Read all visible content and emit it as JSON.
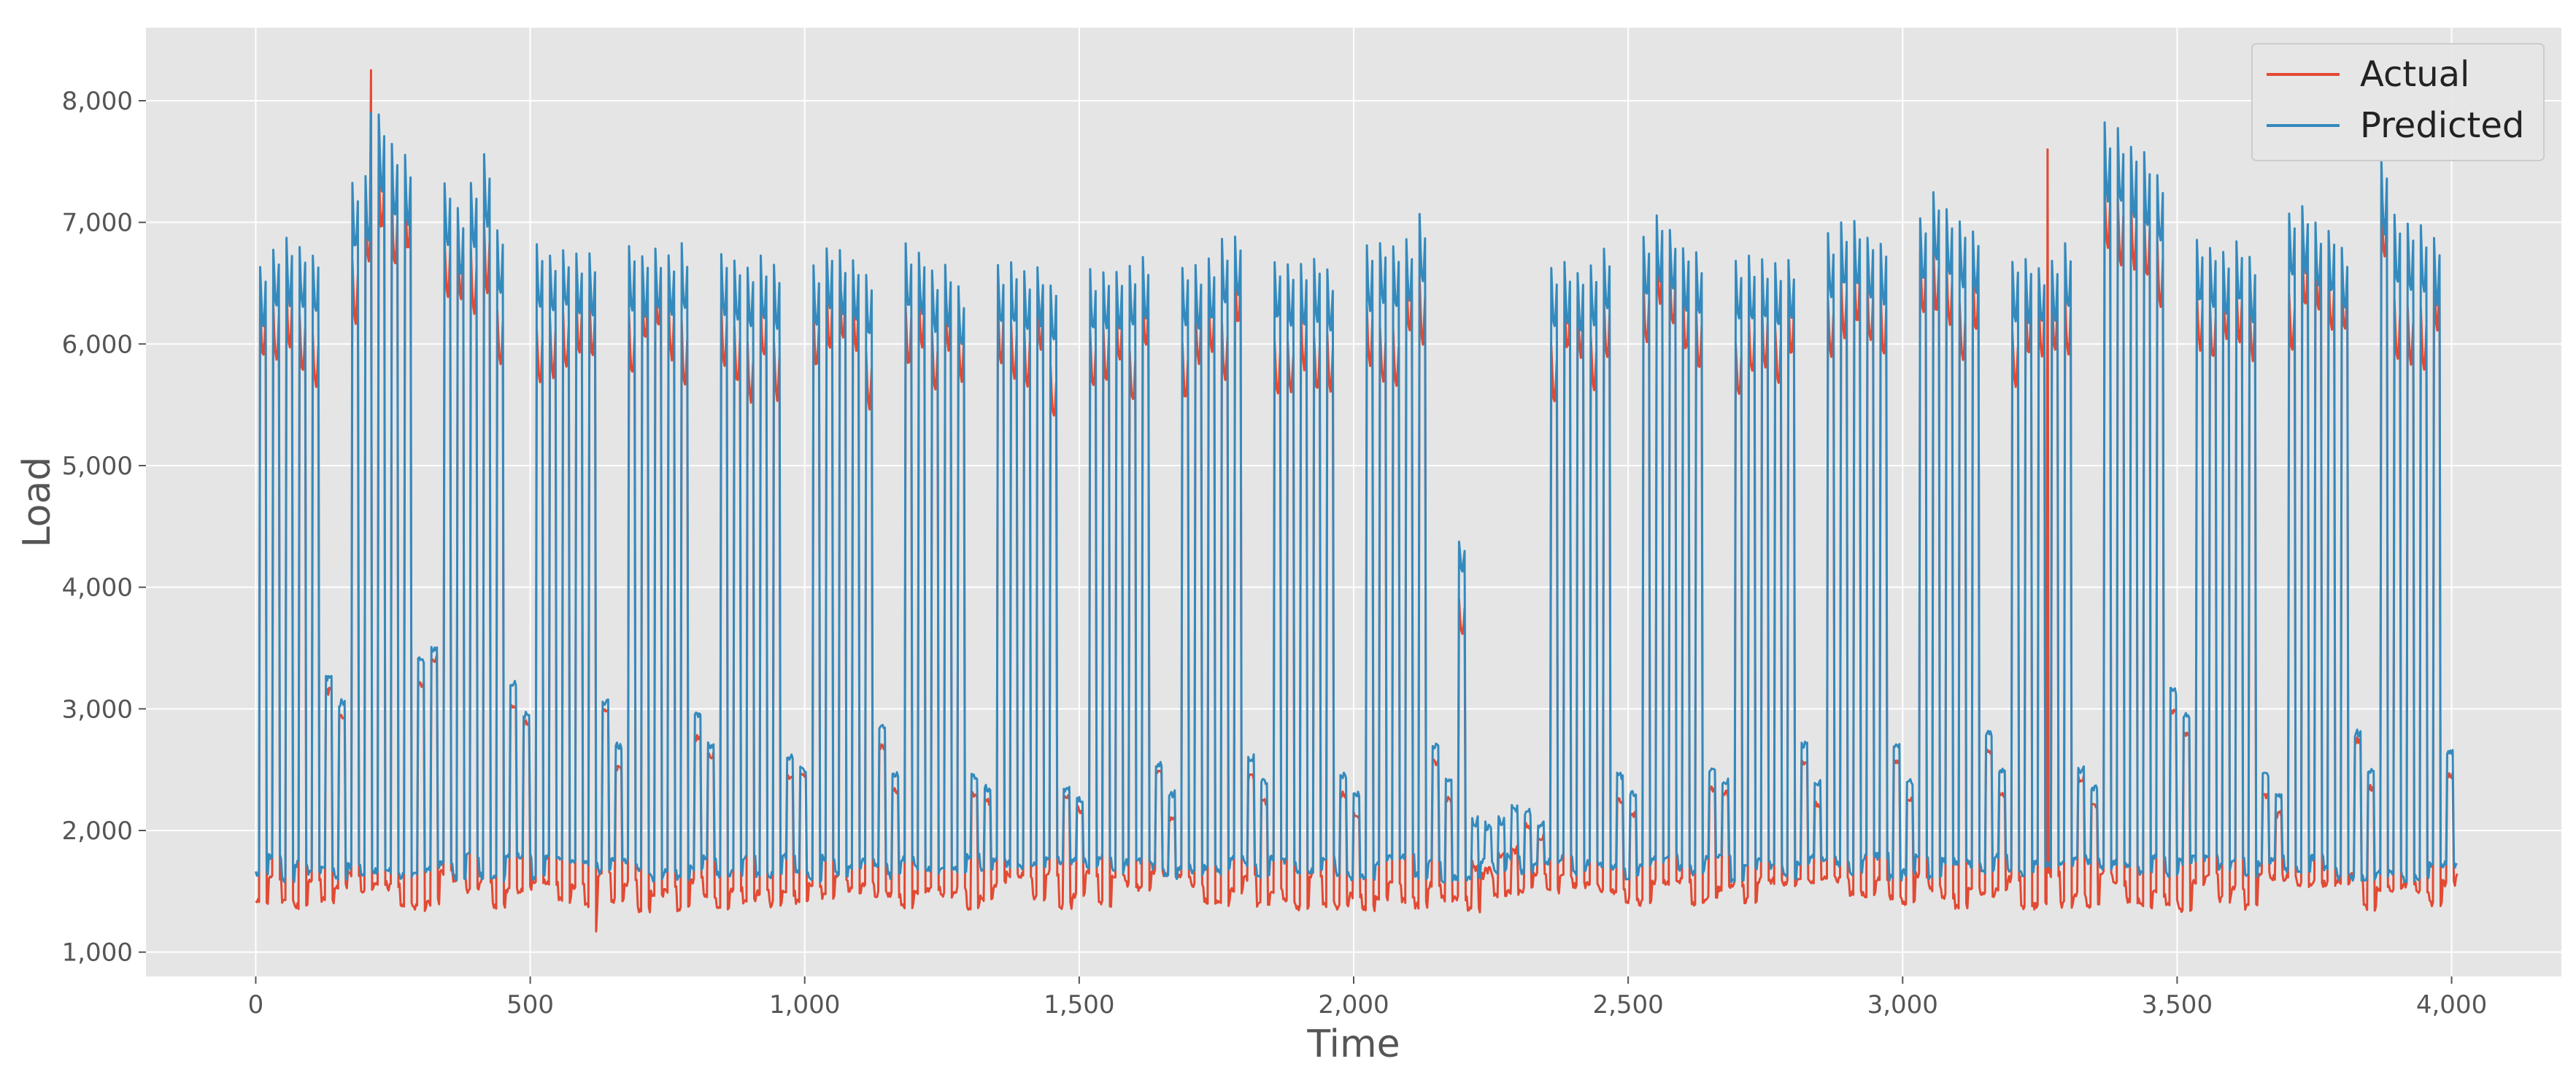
{
  "chart_data": {
    "type": "line",
    "title": "",
    "xlabel": "Time",
    "ylabel": "Load",
    "xlim": [
      -200,
      4200
    ],
    "ylim": [
      800,
      8600
    ],
    "x_ticks": [
      0,
      500,
      1000,
      1500,
      2000,
      2500,
      3000,
      3500,
      4000
    ],
    "x_tick_labels": [
      "0",
      "500",
      "1,000",
      "1,500",
      "2,000",
      "2,500",
      "3,000",
      "3,500",
      "4,000"
    ],
    "y_ticks": [
      1000,
      2000,
      3000,
      4000,
      5000,
      6000,
      7000,
      8000
    ],
    "y_tick_labels": [
      "1,000",
      "2,000",
      "3,000",
      "4,000",
      "5,000",
      "6,000",
      "7,000",
      "8,000"
    ],
    "grid": true,
    "legend_position": "top-right",
    "x_range": [
      0,
      4010
    ],
    "x_step": 2,
    "day_length": 24,
    "daily_profile": {
      "work_start_hour": 7,
      "work_end_hour": 20,
      "ramp_hours": 1,
      "notes_for_weekends": "weekend days show low, irregular loads"
    },
    "weeks": [
      {
        "start": 0,
        "weekday_peaks": [
          6650,
          6800,
          6850,
          6800,
          6750
        ],
        "weekend_peaks": [
          3250,
          3050
        ]
      },
      {
        "start": 168,
        "weekday_peaks": [
          7350,
          7400,
          7900,
          7650,
          7550
        ],
        "weekend_peaks": [
          3400,
          3500
        ]
      },
      {
        "start": 336,
        "weekday_peaks": [
          7350,
          7100,
          7350,
          7550,
          6950
        ],
        "weekend_peaks": [
          3200,
          2950
        ]
      },
      {
        "start": 504,
        "weekday_peaks": [
          6800,
          6750,
          6800,
          6750,
          6750
        ],
        "weekend_peaks": [
          3050,
          2700
        ]
      },
      {
        "start": 672,
        "weekday_peaks": [
          6800,
          6750,
          6800,
          6750,
          6800
        ],
        "weekend_peaks": [
          2950,
          2700
        ]
      },
      {
        "start": 840,
        "weekday_peaks": [
          6750,
          6700,
          6650,
          6700,
          6650
        ],
        "weekend_peaks": [
          2600,
          2500
        ]
      },
      {
        "start": 1008,
        "weekday_peaks": [
          6650,
          6800,
          6750,
          6700,
          6550
        ],
        "weekend_peaks": [
          2850,
          2450
        ]
      },
      {
        "start": 1176,
        "weekday_peaks": [
          6800,
          6750,
          6600,
          6650,
          6450
        ],
        "weekend_peaks": [
          2450,
          2350
        ]
      },
      {
        "start": 1344,
        "weekday_peaks": [
          6650,
          6650,
          6600,
          6650,
          6500
        ],
        "weekend_peaks": [
          2350,
          2250
        ]
      },
      {
        "start": 1512,
        "weekday_peaks": [
          6600,
          6600,
          6600,
          6650,
          6700
        ],
        "weekend_peaks": [
          2550,
          2300
        ]
      },
      {
        "start": 1680,
        "weekday_peaks": [
          6650,
          6650,
          6700,
          6850,
          6900
        ],
        "weekend_peaks": [
          2600,
          2400
        ]
      },
      {
        "start": 1848,
        "weekday_peaks": [
          6700,
          6650,
          6650,
          6700,
          6600
        ],
        "weekend_peaks": [
          2450,
          2300
        ]
      },
      {
        "start": 2016,
        "weekday_peaks": [
          6800,
          6850,
          6800,
          6850,
          7050
        ],
        "weekend_peaks": [
          2700,
          2400
        ]
      },
      {
        "start": 2184,
        "weekday_peaks": [
          4400,
          2100,
          2050,
          2100,
          2200
        ],
        "weekend_peaks": [
          2150,
          2050
        ]
      },
      {
        "start": 2352,
        "weekday_peaks": [
          6650,
          6650,
          6600,
          6650,
          6800
        ],
        "weekend_peaks": [
          2450,
          2300
        ]
      },
      {
        "start": 2520,
        "weekday_peaks": [
          6900,
          7050,
          6950,
          6800,
          6750
        ],
        "weekend_peaks": [
          2500,
          2400
        ]
      },
      {
        "start": 2688,
        "weekday_peaks": [
          6700,
          6700,
          6700,
          6650,
          6700
        ],
        "weekend_peaks": [
          2700,
          2400
        ]
      },
      {
        "start": 2856,
        "weekday_peaks": [
          6900,
          7000,
          7000,
          6900,
          6850
        ],
        "weekend_peaks": [
          2700,
          2400
        ]
      },
      {
        "start": 3024,
        "weekday_peaks": [
          7050,
          7250,
          7100,
          7000,
          6950
        ],
        "weekend_peaks": [
          2800,
          2500
        ]
      },
      {
        "start": 3192,
        "weekday_peaks": [
          6700,
          6700,
          6650,
          6700,
          6800
        ],
        "weekend_peaks": [
          2500,
          2350
        ]
      },
      {
        "start": 3360,
        "weekday_peaks": [
          7800,
          7750,
          7650,
          7550,
          7400
        ],
        "weekend_peaks": [
          3150,
          2950
        ]
      },
      {
        "start": 3528,
        "weekday_peaks": [
          6850,
          6800,
          6750,
          6850,
          6700
        ],
        "weekend_peaks": [
          2450,
          2300
        ]
      },
      {
        "start": 3696,
        "weekday_peaks": [
          7100,
          7150,
          7000,
          6950,
          6800
        ],
        "weekend_peaks": [
          2800,
          2500
        ]
      },
      {
        "start": 3864,
        "weekday_peaks": [
          7500,
          7050,
          7000,
          6950,
          6850
        ],
        "weekend_peaks": [
          2650,
          2600
        ]
      }
    ],
    "series": [
      {
        "name": "Actual",
        "color": "#e24a33",
        "baseline_range": [
          1350,
          1650
        ],
        "peak_offset": [
          -700,
          -150
        ],
        "spikes": [
          {
            "x": 210,
            "y": 8250
          },
          {
            "x": 620,
            "y": 1170
          },
          {
            "x": 3265,
            "y": 7600
          }
        ]
      },
      {
        "name": "Predicted",
        "color": "#348abd",
        "baseline_range": [
          1600,
          1800
        ],
        "peak_offset": [
          0,
          0
        ],
        "spikes": [
          {
            "x": 210,
            "y": 7900
          }
        ]
      }
    ]
  },
  "style": {
    "plot_background": "#e5e5e5",
    "grid_color": "#ffffff",
    "legend_background": "#e5e5e5",
    "legend_border": "#cccccc"
  }
}
